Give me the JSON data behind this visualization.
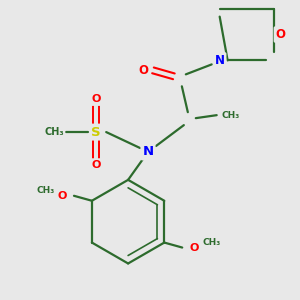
{
  "background_color": "#e8e8e8",
  "bond_color": "#2d6b2d",
  "atom_colors": {
    "O": "#ff0000",
    "N": "#0000ff",
    "S": "#cccc00",
    "C": "#2d6b2d"
  },
  "figsize": [
    3.0,
    3.0
  ],
  "dpi": 100,
  "xlim": [
    0,
    300
  ],
  "ylim": [
    0,
    300
  ]
}
